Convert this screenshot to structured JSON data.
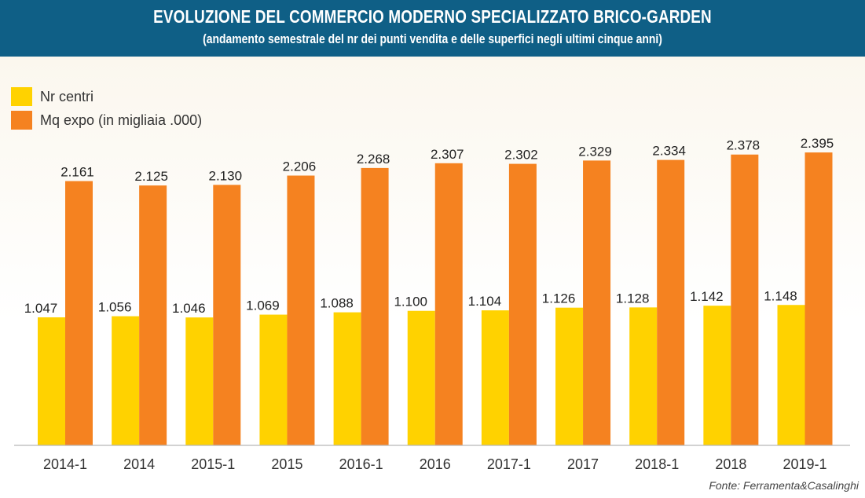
{
  "header": {
    "title": "EVOLUZIONE DEL COMMERCIO MODERNO SPECIALIZZATO BRICO-GARDEN",
    "subtitle": "(andamento semestrale del nr dei punti vendita e delle superfici negli ultimi cinque anni)"
  },
  "colors": {
    "header_bg": "#0f5f86",
    "nr_centri": "#ffd200",
    "mq_expo": "#f58220"
  },
  "source": "Fonte: Ferramenta&Casalinghi",
  "chart_data": {
    "type": "bar",
    "title": "EVOLUZIONE DEL COMMERCIO MODERNO SPECIALIZZATO BRICO-GARDEN",
    "subtitle": "(andamento semestrale del nr dei punti vendita e delle superfici negli ultimi cinque anni)",
    "categories": [
      "2014-1",
      "2014",
      "2015-1",
      "2015",
      "2016-1",
      "2016",
      "2017-1",
      "2017",
      "2018-1",
      "2018",
      "2019-1"
    ],
    "series": [
      {
        "name": "Nr centri",
        "values": [
          1047,
          1056,
          1046,
          1069,
          1088,
          1100,
          1104,
          1126,
          1128,
          1142,
          1148
        ],
        "labels": [
          "1.047",
          "1.056",
          "1.046",
          "1.069",
          "1.088",
          "1.100",
          "1.104",
          "1.126",
          "1.128",
          "1.142",
          "1.148"
        ]
      },
      {
        "name": "Mq expo (in migliaia .000)",
        "values": [
          2161,
          2125,
          2130,
          2206,
          2268,
          2307,
          2302,
          2329,
          2334,
          2378,
          2395
        ],
        "labels": [
          "2.161",
          "2.125",
          "2.130",
          "2.206",
          "2.268",
          "2.307",
          "2.302",
          "2.329",
          "2.334",
          "2.378",
          "2.395"
        ]
      }
    ],
    "xlabel": "",
    "ylabel": "",
    "legend": "top-left",
    "grid": false
  }
}
